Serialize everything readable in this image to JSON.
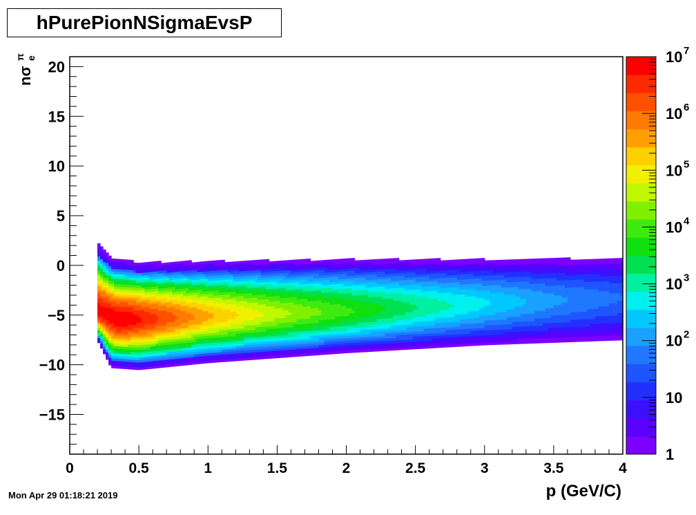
{
  "title": "hPurePionNSigmaEvsP",
  "timestamp": "Mon Apr 29 01:18:21 2019",
  "chart_data": {
    "type": "heatmap",
    "title": "hPurePionNSigmaEvsP",
    "xlabel": "p (GeV/C)",
    "ylabel_main": "nσ",
    "ylabel_sup": "π",
    "ylabel_sub": "e",
    "xlim": [
      0,
      4
    ],
    "ylim": [
      -19,
      21
    ],
    "x_ticks": [
      "0",
      "0.5",
      "1",
      "1.5",
      "2",
      "2.5",
      "3",
      "3.5",
      "4"
    ],
    "y_ticks": [
      "20",
      "15",
      "10",
      "5",
      "0",
      "−5",
      "−10",
      "−15"
    ],
    "y_tick_values": [
      20,
      15,
      10,
      5,
      0,
      -5,
      -10,
      -15
    ],
    "z_scale": "log",
    "zlim": [
      1,
      10000000
    ],
    "z_ticks": [
      {
        "base": "10",
        "exp": "7",
        "value": 10000000
      },
      {
        "base": "10",
        "exp": "6",
        "value": 1000000
      },
      {
        "base": "10",
        "exp": "5",
        "value": 100000
      },
      {
        "base": "10",
        "exp": "4",
        "value": 10000
      },
      {
        "base": "10",
        "exp": "3",
        "value": 1000
      },
      {
        "base": "10",
        "exp": "2",
        "value": 100
      },
      {
        "base": "10",
        "exp": "",
        "value": 10
      },
      {
        "base": "1",
        "exp": "",
        "value": 1
      }
    ],
    "palette": [
      "#7c00ff",
      "#5a00ff",
      "#3c10ff",
      "#2230ff",
      "#1f55ff",
      "#1f78ff",
      "#1aa0ff",
      "#00c8ff",
      "#00f0f0",
      "#00f0a0",
      "#00e050",
      "#10e010",
      "#40ea10",
      "#80f000",
      "#c0f800",
      "#f0f000",
      "#ffd000",
      "#ffa000",
      "#ff7a00",
      "#ff5000",
      "#ff2a00",
      "#ff0000"
    ],
    "distribution": {
      "description_points": "band of pion nσ_e vs momentum",
      "p_start": 0.2,
      "p_end": 4.0,
      "mean": [
        [
          0.2,
          -4.6
        ],
        [
          0.35,
          -5.4
        ],
        [
          0.5,
          -5.4
        ],
        [
          1.0,
          -5.1
        ],
        [
          2.0,
          -4.6
        ],
        [
          3.0,
          -3.8
        ],
        [
          4.0,
          -3.2
        ]
      ],
      "upper_edge": [
        [
          0.2,
          2.2
        ],
        [
          0.3,
          0.6
        ],
        [
          0.5,
          0.2
        ],
        [
          1.0,
          0.3
        ],
        [
          2.0,
          0.5
        ],
        [
          3.0,
          0.5
        ],
        [
          4.0,
          0.6
        ]
      ],
      "lower_edge": [
        [
          0.2,
          -7.5
        ],
        [
          0.3,
          -10.3
        ],
        [
          0.5,
          -10.5
        ],
        [
          1.0,
          -9.8
        ],
        [
          2.0,
          -8.8
        ],
        [
          3.0,
          -8.0
        ],
        [
          4.0,
          -7.5
        ]
      ],
      "peak_log10_counts": [
        [
          0.2,
          6.9
        ],
        [
          0.4,
          7.0
        ],
        [
          0.6,
          6.5
        ],
        [
          1.0,
          5.5
        ],
        [
          1.5,
          4.6
        ],
        [
          2.0,
          3.9
        ],
        [
          2.5,
          3.2
        ],
        [
          3.0,
          2.6
        ],
        [
          3.5,
          2.0
        ],
        [
          4.0,
          1.6
        ]
      ]
    }
  }
}
